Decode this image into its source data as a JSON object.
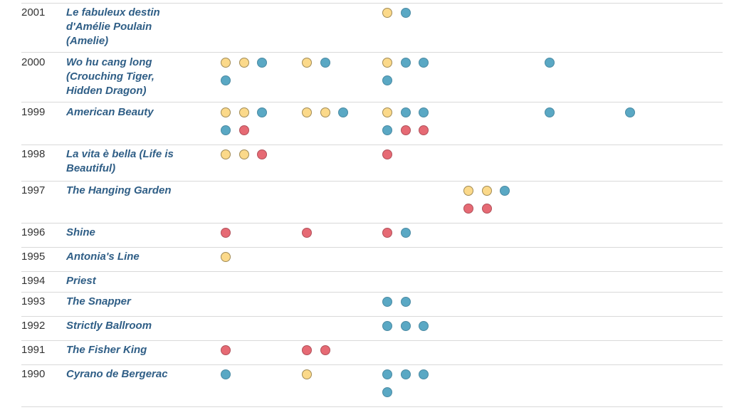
{
  "chart_data": {
    "type": "table",
    "colors": {
      "yellow": "#fbd98a",
      "blue": "#5aa8c4",
      "red": "#e66a74"
    },
    "rows": [
      {
        "year": "2001",
        "title": "Le fabuleux destin d'Amélie Poulain (Amelie)",
        "groups": [
          [],
          [],
          [
            [
              "yellow",
              "blue"
            ]
          ],
          [],
          [],
          []
        ]
      },
      {
        "year": "2000",
        "title": "Wo hu cang long (Crouching Tiger, Hidden Dragon)",
        "groups": [
          [
            [
              "yellow",
              "yellow",
              "blue"
            ],
            [
              "blue"
            ]
          ],
          [
            [
              "yellow",
              "blue"
            ]
          ],
          [
            [
              "yellow",
              "blue",
              "blue"
            ],
            [
              "blue"
            ]
          ],
          [],
          [
            [
              "blue"
            ]
          ],
          []
        ]
      },
      {
        "year": "1999",
        "title": "American Beauty",
        "groups": [
          [
            [
              "yellow",
              "yellow",
              "blue"
            ],
            [
              "blue",
              "red"
            ]
          ],
          [
            [
              "yellow",
              "yellow",
              "blue"
            ]
          ],
          [
            [
              "yellow",
              "blue",
              "blue"
            ],
            [
              "blue",
              "red",
              "red"
            ]
          ],
          [],
          [
            [
              "blue"
            ]
          ],
          [
            [
              "blue"
            ]
          ]
        ]
      },
      {
        "year": "1998",
        "title": "La vita è bella (Life is Beautiful)",
        "groups": [
          [
            [
              "yellow",
              "yellow",
              "red"
            ]
          ],
          [],
          [
            [
              "red"
            ]
          ],
          [],
          [],
          []
        ]
      },
      {
        "year": "1997",
        "title": "The Hanging Garden",
        "groups": [
          [],
          [],
          [],
          [
            [
              "yellow",
              "yellow",
              "blue"
            ],
            [
              "red",
              "red"
            ]
          ],
          [],
          []
        ]
      },
      {
        "year": "1996",
        "title": "Shine",
        "groups": [
          [
            [
              "red"
            ]
          ],
          [
            [
              "red"
            ]
          ],
          [
            [
              "red",
              "blue"
            ]
          ],
          [],
          [],
          []
        ]
      },
      {
        "year": "1995",
        "title": "Antonia's Line",
        "groups": [
          [
            [
              "yellow"
            ]
          ],
          [],
          [],
          [],
          [],
          []
        ]
      },
      {
        "year": "1994",
        "title": "Priest",
        "groups": [
          [],
          [],
          [],
          [],
          [],
          []
        ]
      },
      {
        "year": "1993",
        "title": "The Snapper",
        "groups": [
          [],
          [],
          [
            [
              "blue",
              "blue"
            ]
          ],
          [],
          [],
          []
        ]
      },
      {
        "year": "1992",
        "title": "Strictly Ballroom",
        "groups": [
          [],
          [],
          [
            [
              "blue",
              "blue",
              "blue"
            ]
          ],
          [],
          [],
          []
        ]
      },
      {
        "year": "1991",
        "title": "The Fisher King",
        "groups": [
          [
            [
              "red"
            ]
          ],
          [
            [
              "red",
              "red"
            ]
          ],
          [],
          [],
          [],
          []
        ]
      },
      {
        "year": "1990",
        "title": "Cyrano de Bergerac",
        "groups": [
          [
            [
              "blue"
            ]
          ],
          [
            [
              "yellow"
            ]
          ],
          [
            [
              "blue",
              "blue",
              "blue"
            ],
            [
              "blue"
            ]
          ],
          [],
          [],
          []
        ]
      }
    ]
  }
}
